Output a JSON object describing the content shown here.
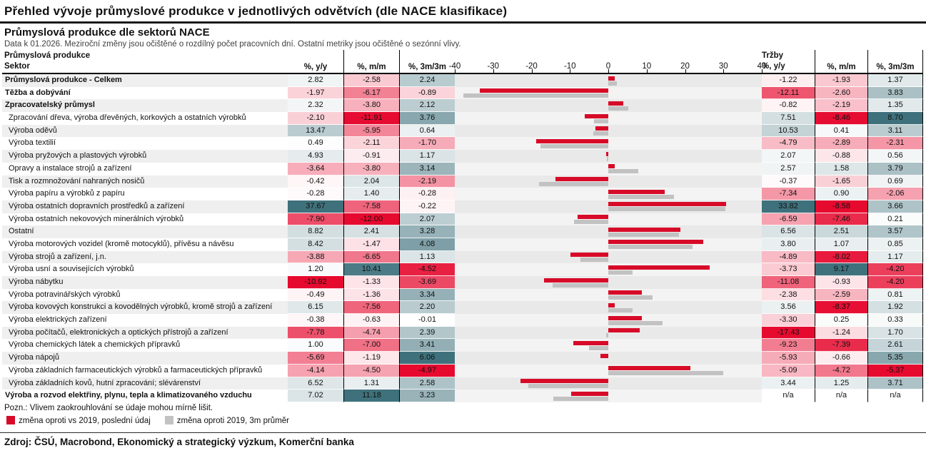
{
  "title": "Přehled vývoje průmyslové produkce v jednotlivých odvětvích (dle NACE klasifikace)",
  "subtitle": "Průmyslová produkce dle sektorů NACE",
  "note": "Data k 01.2026. Meziroční změny jsou očištěné o rozdílný počet pracovních dní. Ostatní metriky jsou očištěné o sezónní vlivy.",
  "header": {
    "left_group": "Průmyslová produkce",
    "sector": "Sektor",
    "col_yy": "%, y/y",
    "col_mm": "%, m/m",
    "col_3m3m": "%, 3m/3m",
    "sales_group": "Tržby",
    "sales_yy": "%, y/y",
    "sales_mm": "%, m/m",
    "sales_3m3m": "%, 3m/3m"
  },
  "footnote": "Pozn.: Vlivem zaokrouhlování se údaje mohou mírně lišit.",
  "source": "Zdroj: ČSÚ, Macrobond, Ekonomický a strategický výzkum, Komerční banka",
  "na_text": "n/a",
  "colors": {
    "positive_max": "#3f717c",
    "negative_max": "#e60a2f"
  },
  "chart_data": {
    "type": "table+bar",
    "title": "Průmyslová produkce dle sektorů NACE",
    "bar_axis": {
      "min": -40,
      "max": 40,
      "ticks": [
        -40,
        -30,
        -20,
        -10,
        0,
        10,
        20,
        30,
        40
      ]
    },
    "bar_series": [
      {
        "name": "změna oproti vs 2019, poslední údaj",
        "color": "#d70b28"
      },
      {
        "name": "změna oproti 2019, 3m průměr",
        "color": "#c2c2c2"
      }
    ],
    "columns": [
      "Sektor",
      "Produkce %, y/y",
      "Produkce %, m/m",
      "Produkce %, 3m/3m",
      "Tržby %, y/y",
      "Tržby %, m/m",
      "Tržby %, 3m/3m"
    ],
    "rows": [
      {
        "label": "Průmyslová produkce - Celkem",
        "bold": true,
        "prod": [
          2.82,
          -2.58,
          2.24
        ],
        "sales": [
          -1.22,
          -1.93,
          1.37
        ],
        "bars": [
          1.7,
          2.2
        ]
      },
      {
        "label": "Těžba a dobývání",
        "bold": true,
        "prod": [
          -1.97,
          -6.17,
          -0.89
        ],
        "sales": [
          -12.11,
          -2.6,
          3.83
        ],
        "bars": [
          -33.5,
          -37.7
        ]
      },
      {
        "label": "Zpracovatelský průmysl",
        "bold": true,
        "prod": [
          2.32,
          -3.8,
          2.12
        ],
        "sales": [
          -0.82,
          -2.19,
          1.35
        ],
        "bars": [
          3.9,
          5.3
        ]
      },
      {
        "label": "Zpracování dřeva, výroba dřevěných, korkových a ostatních výrobků",
        "bold": false,
        "prod": [
          -2.1,
          -11.91,
          3.76
        ],
        "sales": [
          7.51,
          -8.46,
          8.7
        ],
        "bars": [
          -6.1,
          -3.8
        ]
      },
      {
        "label": "Výroba oděvů",
        "bold": false,
        "prod": [
          13.47,
          -5.95,
          0.64
        ],
        "sales": [
          10.53,
          0.41,
          3.11
        ],
        "bars": [
          -3.4,
          -3.9
        ]
      },
      {
        "label": "Výroba textilií",
        "bold": false,
        "prod": [
          0.49,
          -2.11,
          -1.7
        ],
        "sales": [
          -4.79,
          -2.89,
          -2.31
        ],
        "bars": [
          -18.7,
          -17.7
        ]
      },
      {
        "label": "Výroba pryžových a plastových výrobků",
        "bold": false,
        "prod": [
          4.93,
          -0.91,
          1.17
        ],
        "sales": [
          2.07,
          -0.88,
          0.56
        ],
        "bars": [
          -0.5,
          -0.3
        ]
      },
      {
        "label": "Opravy a instalace strojů a zařízení",
        "bold": false,
        "prod": [
          -3.64,
          -3.8,
          3.14
        ],
        "sales": [
          2.57,
          1.58,
          3.79
        ],
        "bars": [
          1.7,
          7.8
        ]
      },
      {
        "label": "Tisk a rozmnožování nahraných nosičů",
        "bold": false,
        "prod": [
          -0.42,
          2.04,
          -2.19
        ],
        "sales": [
          -0.37,
          -1.65,
          0.69
        ],
        "bars": [
          -13.7,
          -18.0
        ]
      },
      {
        "label": "Výroba papíru a výrobků z papíru",
        "bold": false,
        "prod": [
          -0.28,
          1.4,
          -0.28
        ],
        "sales": [
          -7.34,
          0.9,
          -2.06
        ],
        "bars": [
          14.7,
          17.1
        ]
      },
      {
        "label": "Výroba ostatních dopravních prostředků a zařízení",
        "bold": false,
        "prod": [
          37.67,
          -7.58,
          -0.22
        ],
        "sales": [
          33.82,
          -8.58,
          3.66
        ],
        "bars": [
          30.7,
          30.5
        ]
      },
      {
        "label": "Výroba ostatních nekovových minerálních výrobků",
        "bold": false,
        "prod": [
          -7.9,
          -12.0,
          2.07
        ],
        "sales": [
          -6.59,
          -7.46,
          0.21
        ],
        "bars": [
          -8.0,
          -9.0
        ]
      },
      {
        "label": "Ostatní",
        "bold": false,
        "prod": [
          8.82,
          2.41,
          3.28
        ],
        "sales": [
          6.56,
          2.51,
          3.57
        ],
        "bars": [
          18.8,
          18.5
        ]
      },
      {
        "label": "Výroba motorových vozidel (kromě motocyklů), přívěsu a návěsu",
        "bold": false,
        "prod": [
          8.42,
          -1.47,
          4.08
        ],
        "sales": [
          3.8,
          1.07,
          0.85
        ],
        "bars": [
          24.7,
          22.0
        ]
      },
      {
        "label": "Výroba strojů a zařízení, j.n.",
        "bold": false,
        "prod": [
          -3.88,
          -6.65,
          1.13
        ],
        "sales": [
          -4.89,
          -8.02,
          1.17
        ],
        "bars": [
          -9.9,
          -7.2
        ]
      },
      {
        "label": "Výroba usní a souvisejících výrobků",
        "bold": false,
        "prod": [
          1.2,
          10.41,
          -4.52
        ],
        "sales": [
          -3.73,
          9.17,
          -4.2
        ],
        "bars": [
          26.5,
          6.3
        ]
      },
      {
        "label": "Výroba nábytku",
        "bold": false,
        "prod": [
          -10.92,
          -1.33,
          -3.69
        ],
        "sales": [
          -11.08,
          -0.93,
          -4.2
        ],
        "bars": [
          -16.7,
          -14.5
        ]
      },
      {
        "label": "Výroba potravinářských výrobků",
        "bold": false,
        "prod": [
          -0.49,
          -1.36,
          3.34
        ],
        "sales": [
          -2.38,
          -2.59,
          0.81
        ],
        "bars": [
          8.8,
          11.6
        ]
      },
      {
        "label": "Výroba kovových konstrukci a kovodělných výrobků, kromě strojů a zařízení",
        "bold": false,
        "prod": [
          6.15,
          -7.56,
          2.2
        ],
        "sales": [
          3.56,
          -8.37,
          1.92
        ],
        "bars": [
          1.7,
          6.4
        ]
      },
      {
        "label": "Výroba elektrických zařízení",
        "bold": false,
        "prod": [
          -0.38,
          -0.63,
          -0.01
        ],
        "sales": [
          -3.3,
          0.25,
          0.33
        ],
        "bars": [
          8.8,
          14.1
        ]
      },
      {
        "label": "Výroba počítačů, elektronických a optických přístrojů a zařízení",
        "bold": false,
        "prod": [
          -7.78,
          -4.74,
          2.39
        ],
        "sales": [
          -17.43,
          -1.24,
          1.7
        ],
        "bars": [
          8.2,
          -0.6
        ]
      },
      {
        "label": "Výroba chemických látek a chemických přípravků",
        "bold": false,
        "prod": [
          1.0,
          -7.0,
          3.41
        ],
        "sales": [
          -9.23,
          -7.39,
          2.61
        ],
        "bars": [
          -9.1,
          -5.0
        ]
      },
      {
        "label": "Výroba nápojů",
        "bold": false,
        "prod": [
          -5.69,
          -1.19,
          6.06
        ],
        "sales": [
          -5.93,
          -0.66,
          5.35
        ],
        "bars": [
          -2.1,
          0.0
        ]
      },
      {
        "label": "Výroba základních farmaceutických výrobků a farmaceutických přípravků",
        "bold": false,
        "prod": [
          -4.14,
          -4.5,
          -4.97
        ],
        "sales": [
          -5.09,
          -4.72,
          -5.37
        ],
        "bars": [
          21.4,
          29.9
        ]
      },
      {
        "label": "Výroba základních kovů, hutní zpracování; slévárenství",
        "bold": false,
        "prod": [
          6.52,
          1.31,
          2.58
        ],
        "sales": [
          3.44,
          1.25,
          3.71
        ],
        "bars": [
          -22.8,
          -20.8
        ]
      },
      {
        "label": "Výroba a rozvod elektřiny, plynu, tepla a klimatizovaného vzduchu",
        "bold": true,
        "prod": [
          7.02,
          11.18,
          3.23
        ],
        "sales": [
          null,
          null,
          null
        ],
        "bars": [
          -9.6,
          -14.3
        ]
      }
    ]
  }
}
